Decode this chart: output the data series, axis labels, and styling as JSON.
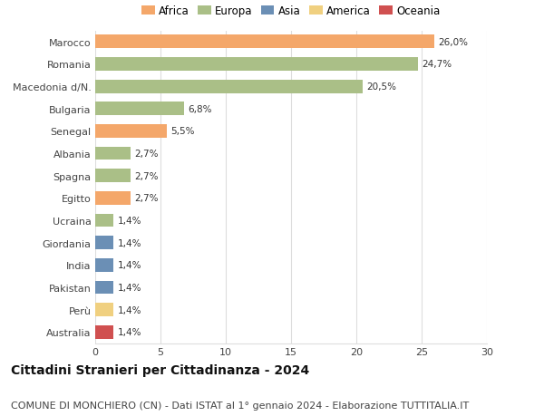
{
  "categories": [
    "Marocco",
    "Romania",
    "Macedonia d/N.",
    "Bulgaria",
    "Senegal",
    "Albania",
    "Spagna",
    "Egitto",
    "Ucraina",
    "Giordania",
    "India",
    "Pakistan",
    "Perù",
    "Australia"
  ],
  "values": [
    26.0,
    24.7,
    20.5,
    6.8,
    5.5,
    2.7,
    2.7,
    2.7,
    1.4,
    1.4,
    1.4,
    1.4,
    1.4,
    1.4
  ],
  "labels": [
    "26,0%",
    "24,7%",
    "20,5%",
    "6,8%",
    "5,5%",
    "2,7%",
    "2,7%",
    "2,7%",
    "1,4%",
    "1,4%",
    "1,4%",
    "1,4%",
    "1,4%",
    "1,4%"
  ],
  "continent_colors": {
    "Africa": "#F4A76A",
    "Europa": "#AABF87",
    "Asia": "#6B8FB5",
    "America": "#F0D080",
    "Oceania": "#D05050"
  },
  "bar_colors": [
    "#F4A76A",
    "#AABF87",
    "#AABF87",
    "#AABF87",
    "#F4A76A",
    "#AABF87",
    "#AABF87",
    "#F4A76A",
    "#AABF87",
    "#6B8FB5",
    "#6B8FB5",
    "#6B8FB5",
    "#F0D080",
    "#D05050"
  ],
  "xlim": [
    0,
    30
  ],
  "xticks": [
    0,
    5,
    10,
    15,
    20,
    25,
    30
  ],
  "title": "Cittadini Stranieri per Cittadinanza - 2024",
  "subtitle": "COMUNE DI MONCHIERO (CN) - Dati ISTAT al 1° gennaio 2024 - Elaborazione TUTTITALIA.IT",
  "background_color": "#ffffff",
  "grid_color": "#dddddd",
  "legend_entries": [
    "Africa",
    "Europa",
    "Asia",
    "America",
    "Oceania"
  ],
  "title_fontsize": 10,
  "subtitle_fontsize": 8,
  "label_fontsize": 7.5,
  "tick_fontsize": 8,
  "legend_fontsize": 8.5
}
